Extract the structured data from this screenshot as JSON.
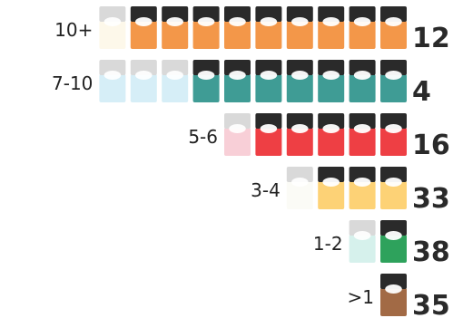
{
  "chart_data": {
    "type": "pictogram",
    "unit_count": 10,
    "rows": [
      {
        "label": "10+",
        "value": 12,
        "pods_total": 10,
        "pods_colored": 9,
        "color": "#f39749",
        "pale": "#fdf8ea"
      },
      {
        "label": "7-10",
        "value": 4,
        "pods_total": 10,
        "pods_colored": 7,
        "color": "#3f9c95",
        "pale": "#d6eef7"
      },
      {
        "label": "5-6",
        "value": 16,
        "pods_total": 6,
        "pods_colored": 5,
        "color": "#ee3f44",
        "pale": "#f8cfd7"
      },
      {
        "label": "3-4",
        "value": 33,
        "pods_total": 4,
        "pods_colored": 3,
        "color": "#fdd276",
        "pale": "#fbfbf6"
      },
      {
        "label": "1-2",
        "value": 38,
        "pods_total": 2,
        "pods_colored": 1,
        "color": "#2ea25c",
        "pale": "#d6f1ec"
      },
      {
        "label": ">1",
        "value": 35,
        "pods_total": 1,
        "pods_colored": 1,
        "color": "#a26a45",
        "pale": "#e6d8cb"
      }
    ]
  }
}
